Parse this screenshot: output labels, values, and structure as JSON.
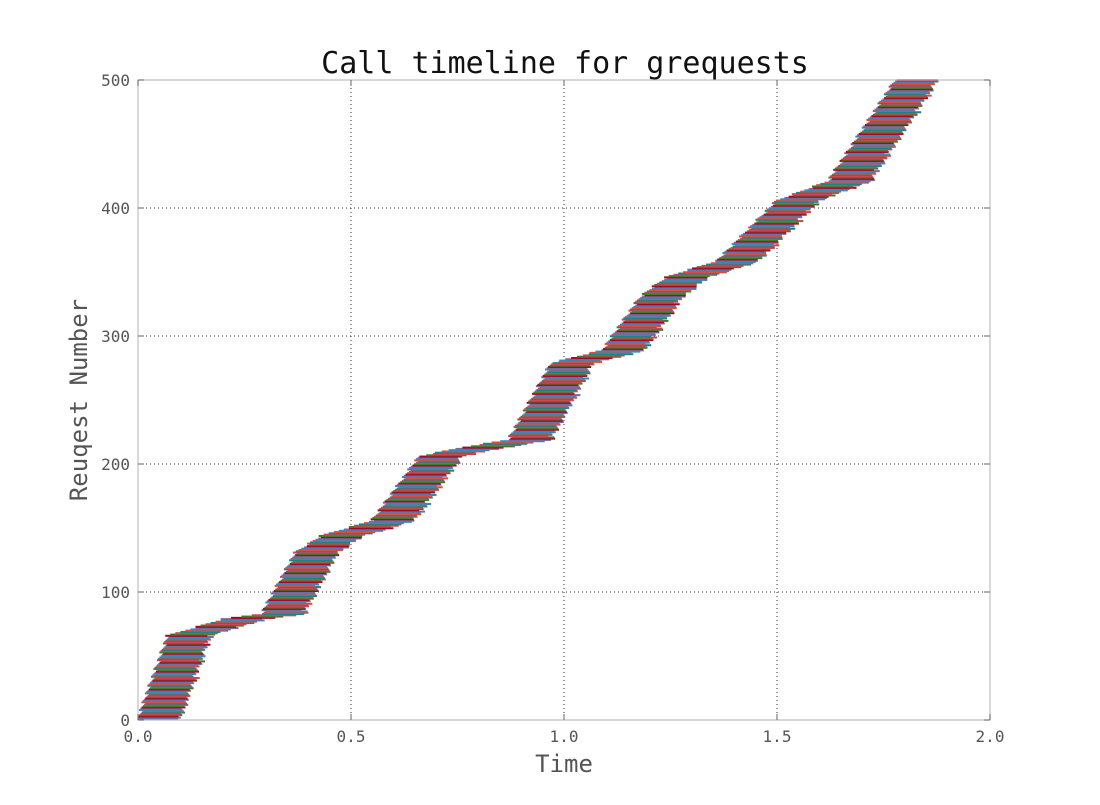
{
  "chart_data": {
    "type": "bar",
    "subtype": "horizontal-timeline",
    "title": "Call timeline for grequests",
    "xlabel": "Time",
    "ylabel": "Reuqest Number",
    "xlim": [
      0.0,
      2.0
    ],
    "ylim": [
      0,
      500
    ],
    "xticks": [
      0.0,
      0.5,
      1.0,
      1.5,
      2.0
    ],
    "xtick_labels": [
      "0.0",
      "0.5",
      "1.0",
      "1.5",
      "2.0"
    ],
    "yticks": [
      0,
      100,
      200,
      300,
      400,
      500
    ],
    "ytick_labels": [
      "0",
      "100",
      "200",
      "300",
      "400",
      "500"
    ],
    "grid": true,
    "grid_style": "dotted",
    "legend": "none",
    "request_count": 500,
    "bar_duration_approx": 0.1,
    "start_time_knots": [
      [
        0,
        0.0
      ],
      [
        65,
        0.07
      ],
      [
        78,
        0.2
      ],
      [
        82,
        0.29
      ],
      [
        130,
        0.37
      ],
      [
        143,
        0.43
      ],
      [
        155,
        0.55
      ],
      [
        205,
        0.66
      ],
      [
        212,
        0.76
      ],
      [
        218,
        0.87
      ],
      [
        278,
        0.97
      ],
      [
        288,
        1.09
      ],
      [
        330,
        1.18
      ],
      [
        345,
        1.24
      ],
      [
        358,
        1.36
      ],
      [
        405,
        1.5
      ],
      [
        420,
        1.62
      ],
      [
        495,
        1.77
      ],
      [
        500,
        1.78
      ]
    ],
    "palette": [
      "#348ABD",
      "#7A68A6",
      "#A60628",
      "#467821",
      "#CF4457",
      "#188487",
      "#E24A33"
    ]
  }
}
